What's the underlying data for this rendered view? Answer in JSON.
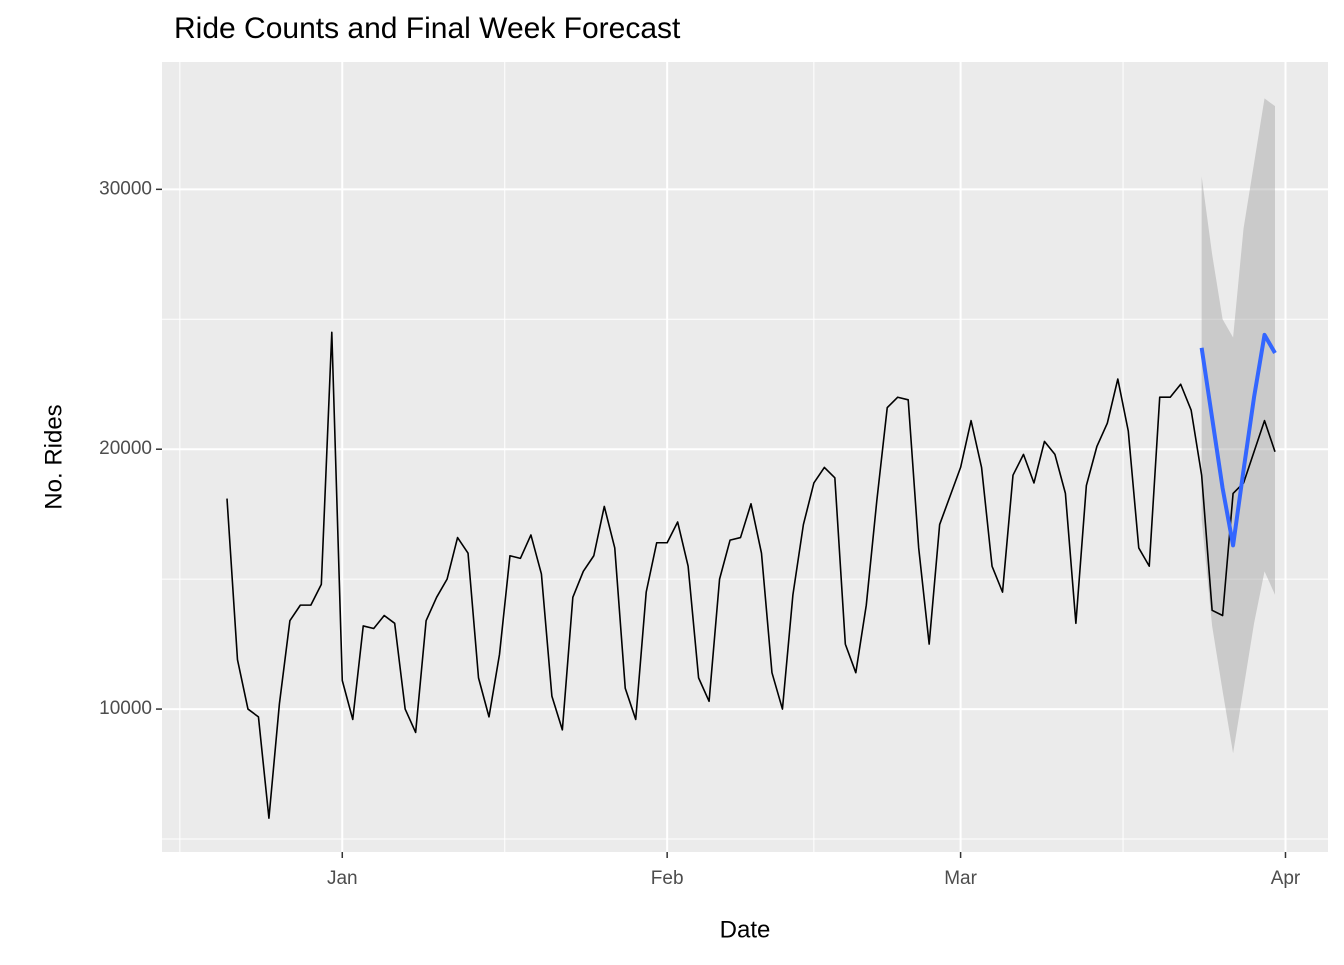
{
  "chart_data": {
    "type": "line",
    "title": "Ride Counts and Final Week Forecast",
    "x_label": "Date",
    "y_label": "No. Rides",
    "categories": [
      null,
      null,
      null,
      null,
      null,
      null,
      null,
      null,
      null,
      null,
      null,
      "Jan",
      null,
      null,
      null,
      null,
      null,
      null,
      null,
      null,
      null,
      null,
      null,
      null,
      null,
      null,
      null,
      null,
      null,
      null,
      null,
      null,
      null,
      null,
      null,
      null,
      null,
      null,
      null,
      null,
      null,
      null,
      "Feb",
      null,
      null,
      null,
      null,
      null,
      null,
      null,
      null,
      null,
      null,
      null,
      null,
      null,
      null,
      null,
      null,
      null,
      null,
      null,
      null,
      null,
      null,
      null,
      null,
      null,
      null,
      null,
      "Mar",
      null,
      null,
      null,
      null,
      null,
      null,
      null,
      null,
      null,
      null,
      null,
      null,
      null,
      null,
      null,
      null,
      null,
      null,
      null,
      null,
      null,
      null,
      null,
      null,
      null,
      null,
      null,
      null,
      null,
      null,
      "Apr"
    ],
    "series": [
      {
        "color": "#000000",
        "values": [
          18100,
          11900,
          10000,
          9700,
          5800,
          10200,
          13400,
          14000,
          14000,
          14800,
          24500,
          11100,
          9600,
          13200,
          13100,
          13600,
          13300,
          10000,
          9100,
          13400,
          14300,
          15000,
          16600,
          16000,
          11200,
          9700,
          12100,
          15900,
          15800,
          16700,
          15200,
          10500,
          9200,
          14300,
          15300,
          15900,
          17800,
          16200,
          10800,
          9600,
          14500,
          16400,
          16400,
          17200,
          15500,
          11200,
          10300,
          15000,
          16500,
          16600,
          17900,
          16000,
          11400,
          10000,
          14400,
          17100,
          18700,
          19300,
          18900,
          12500,
          11400,
          14000,
          18000,
          21600,
          22000,
          21900,
          16200,
          12500,
          17100,
          18200,
          19300,
          21100,
          19300,
          15500,
          14500,
          19000,
          19800,
          18700,
          20300,
          19800,
          18300,
          13300,
          18600,
          20100,
          21000,
          22700,
          20700,
          16200,
          15500,
          22000,
          22000,
          22500,
          21500,
          19000,
          13800,
          13600,
          18300,
          18700,
          19900,
          21100,
          19900,
          null
        ]
      },
      {
        "color": "#3366FF",
        "band_color": "#999999",
        "values": [
          null,
          null,
          null,
          null,
          null,
          null,
          null,
          null,
          null,
          null,
          null,
          null,
          null,
          null,
          null,
          null,
          null,
          null,
          null,
          null,
          null,
          null,
          null,
          null,
          null,
          null,
          null,
          null,
          null,
          null,
          null,
          null,
          null,
          null,
          null,
          null,
          null,
          null,
          null,
          null,
          null,
          null,
          null,
          null,
          null,
          null,
          null,
          null,
          null,
          null,
          null,
          null,
          null,
          null,
          null,
          null,
          null,
          null,
          null,
          null,
          null,
          null,
          null,
          null,
          null,
          null,
          null,
          null,
          null,
          null,
          null,
          null,
          null,
          null,
          null,
          null,
          null,
          null,
          null,
          null,
          null,
          null,
          null,
          null,
          null,
          null,
          null,
          null,
          null,
          null,
          null,
          null,
          null,
          23900,
          21200,
          18500,
          16300,
          19200,
          22000,
          24400,
          23700,
          null
        ],
        "band_lower": [
          null,
          null,
          null,
          null,
          null,
          null,
          null,
          null,
          null,
          null,
          null,
          null,
          null,
          null,
          null,
          null,
          null,
          null,
          null,
          null,
          null,
          null,
          null,
          null,
          null,
          null,
          null,
          null,
          null,
          null,
          null,
          null,
          null,
          null,
          null,
          null,
          null,
          null,
          null,
          null,
          null,
          null,
          null,
          null,
          null,
          null,
          null,
          null,
          null,
          null,
          null,
          null,
          null,
          null,
          null,
          null,
          null,
          null,
          null,
          null,
          null,
          null,
          null,
          null,
          null,
          null,
          null,
          null,
          null,
          null,
          null,
          null,
          null,
          null,
          null,
          null,
          null,
          null,
          null,
          null,
          null,
          null,
          null,
          null,
          null,
          null,
          null,
          null,
          null,
          null,
          null,
          null,
          null,
          17300,
          13200,
          10700,
          8300,
          10800,
          13300,
          15300,
          14400,
          null
        ],
        "band_upper": [
          null,
          null,
          null,
          null,
          null,
          null,
          null,
          null,
          null,
          null,
          null,
          null,
          null,
          null,
          null,
          null,
          null,
          null,
          null,
          null,
          null,
          null,
          null,
          null,
          null,
          null,
          null,
          null,
          null,
          null,
          null,
          null,
          null,
          null,
          null,
          null,
          null,
          null,
          null,
          null,
          null,
          null,
          null,
          null,
          null,
          null,
          null,
          null,
          null,
          null,
          null,
          null,
          null,
          null,
          null,
          null,
          null,
          null,
          null,
          null,
          null,
          null,
          null,
          null,
          null,
          null,
          null,
          null,
          null,
          null,
          null,
          null,
          null,
          null,
          null,
          null,
          null,
          null,
          null,
          null,
          null,
          null,
          null,
          null,
          null,
          null,
          null,
          null,
          null,
          null,
          null,
          null,
          null,
          30500,
          27500,
          25000,
          24300,
          28500,
          31000,
          33500,
          33200,
          null
        ]
      }
    ],
    "ylim": [
      4500,
      34900
    ],
    "yticks": [
      10000,
      20000,
      30000
    ],
    "grid": true
  }
}
